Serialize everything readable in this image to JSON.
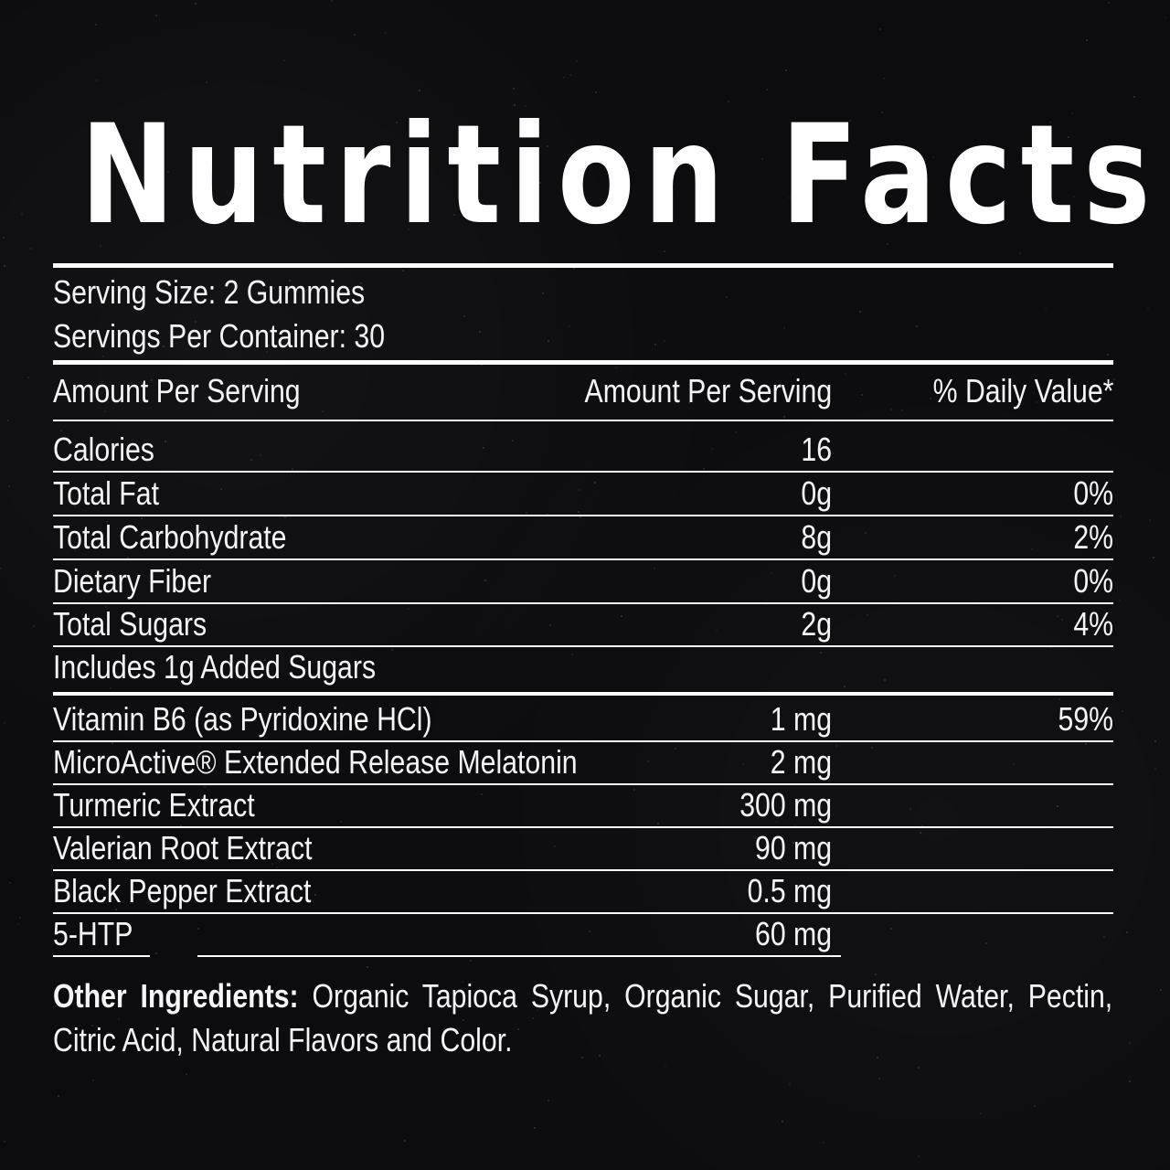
{
  "title": "Nutrition Facts",
  "serving": {
    "size": "Serving Size: 2 Gummies",
    "per_container": "Servings Per Container: 30"
  },
  "header": {
    "col1": "Amount Per Serving",
    "col2": "Amount Per Serving",
    "col3": "% Daily Value*"
  },
  "rows": [
    {
      "name": "Calories",
      "amount": "16",
      "dv": ""
    },
    {
      "name": "Total Fat",
      "amount": "0g",
      "dv": "0%"
    },
    {
      "name": "Total Carbohydrate",
      "amount": "8g",
      "dv": "2%"
    },
    {
      "name": "Dietary Fiber",
      "amount": "0g",
      "dv": "0%"
    },
    {
      "name": "Total Sugars",
      "amount": "2g",
      "dv": "4%"
    },
    {
      "name": "Includes 1g Added Sugars",
      "amount": "",
      "dv": ""
    },
    {
      "name": "Vitamin B6 (as Pyridoxine HCl)",
      "amount": "1 mg",
      "dv": "59%"
    },
    {
      "name": "MicroActive® Extended Release Melatonin",
      "amount": "2 mg",
      "dv": ""
    },
    {
      "name": "Turmeric Extract",
      "amount": "300 mg",
      "dv": ""
    },
    {
      "name": "Valerian Root Extract",
      "amount": "90 mg",
      "dv": ""
    },
    {
      "name": "Black Pepper Extract",
      "amount": "0.5 mg",
      "dv": ""
    },
    {
      "name": "5-HTP",
      "amount": "60 mg",
      "dv": ""
    }
  ],
  "other_ingredients": {
    "label": "Other Ingredients:",
    "text": "Organic Tapioca Syrup, Organic Sugar, Purified Water, Pectin, Citric Acid, Natural Flavors and Color."
  }
}
